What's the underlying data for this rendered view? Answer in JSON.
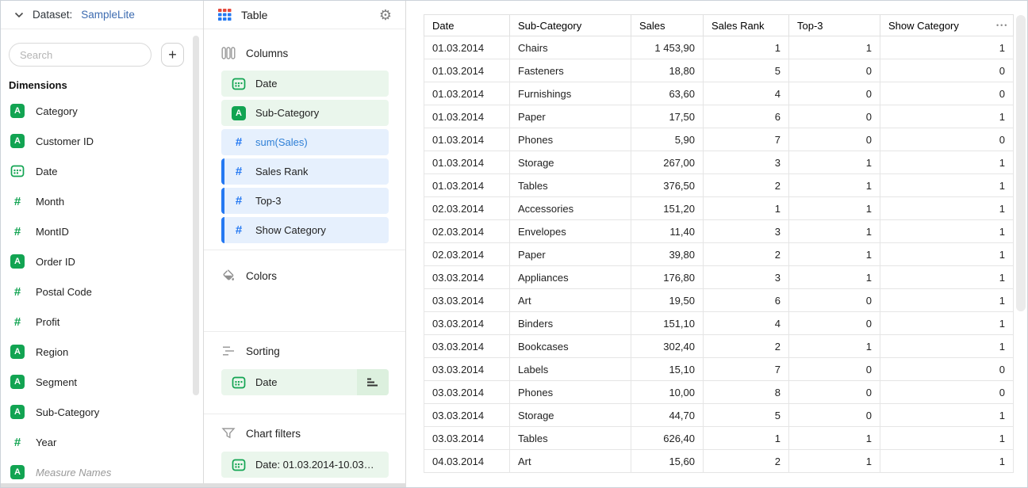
{
  "ui_colors": {
    "green": "#12A452",
    "green_bg": "#EAF6EC",
    "green_bg_dark": "#DCF0DE",
    "blue": "#2579F2",
    "blue_bg": "#E6F0FD",
    "blue_text": "#2E7FD6",
    "link_blue": "#3C6BB0"
  },
  "dataset_panel": {
    "label": "Dataset:",
    "dataset_name": "SampleLite",
    "search_placeholder": "Search",
    "add_button_label": "+",
    "dimensions_title": "Dimensions",
    "fields": [
      {
        "name": "Category",
        "type": "text"
      },
      {
        "name": "Customer ID",
        "type": "text"
      },
      {
        "name": "Date",
        "type": "date"
      },
      {
        "name": "Month",
        "type": "number"
      },
      {
        "name": "MontID",
        "type": "number"
      },
      {
        "name": "Order ID",
        "type": "text"
      },
      {
        "name": "Postal Code",
        "type": "number"
      },
      {
        "name": "Profit",
        "type": "number"
      },
      {
        "name": "Region",
        "type": "text"
      },
      {
        "name": "Segment",
        "type": "text"
      },
      {
        "name": "Sub-Category",
        "type": "text"
      },
      {
        "name": "Year",
        "type": "number"
      },
      {
        "name": "Measure Names",
        "type": "text",
        "muted": true
      }
    ]
  },
  "viz_panel": {
    "title": "Table",
    "settings_gear": "⚙",
    "columns_section": {
      "label": "Columns",
      "items": [
        {
          "label": "Date",
          "type": "date",
          "style": "green"
        },
        {
          "label": "Sub-Category",
          "type": "text",
          "style": "green"
        },
        {
          "label": "sum(Sales)",
          "type": "number",
          "style": "blue-formula"
        },
        {
          "label": "Sales Rank",
          "type": "number",
          "style": "blue-bar"
        },
        {
          "label": "Top-3",
          "type": "number",
          "style": "blue-bar"
        },
        {
          "label": "Show Category",
          "type": "number",
          "style": "blue-bar"
        }
      ]
    },
    "colors_section": {
      "label": "Colors"
    },
    "sorting_section": {
      "label": "Sorting",
      "items": [
        {
          "label": "Date",
          "type": "date",
          "direction": "asc"
        }
      ]
    },
    "filters_section": {
      "label": "Chart filters",
      "items": [
        {
          "label": "Date: 01.03.2014-10.03.20…",
          "type": "date"
        }
      ]
    }
  },
  "data_table": {
    "menu_dots": "•••",
    "columns": [
      "Date",
      "Sub-Category",
      "Sales",
      "Sales Rank",
      "Top-3",
      "Show Category"
    ],
    "rows": [
      [
        "01.03.2014",
        "Chairs",
        "1 453,90",
        "1",
        "1",
        "1"
      ],
      [
        "01.03.2014",
        "Fasteners",
        "18,80",
        "5",
        "0",
        "0"
      ],
      [
        "01.03.2014",
        "Furnishings",
        "63,60",
        "4",
        "0",
        "0"
      ],
      [
        "01.03.2014",
        "Paper",
        "17,50",
        "6",
        "0",
        "1"
      ],
      [
        "01.03.2014",
        "Phones",
        "5,90",
        "7",
        "0",
        "0"
      ],
      [
        "01.03.2014",
        "Storage",
        "267,00",
        "3",
        "1",
        "1"
      ],
      [
        "01.03.2014",
        "Tables",
        "376,50",
        "2",
        "1",
        "1"
      ],
      [
        "02.03.2014",
        "Accessories",
        "151,20",
        "1",
        "1",
        "1"
      ],
      [
        "02.03.2014",
        "Envelopes",
        "11,40",
        "3",
        "1",
        "1"
      ],
      [
        "02.03.2014",
        "Paper",
        "39,80",
        "2",
        "1",
        "1"
      ],
      [
        "03.03.2014",
        "Appliances",
        "176,80",
        "3",
        "1",
        "1"
      ],
      [
        "03.03.2014",
        "Art",
        "19,50",
        "6",
        "0",
        "1"
      ],
      [
        "03.03.2014",
        "Binders",
        "151,10",
        "4",
        "0",
        "1"
      ],
      [
        "03.03.2014",
        "Bookcases",
        "302,40",
        "2",
        "1",
        "1"
      ],
      [
        "03.03.2014",
        "Labels",
        "15,10",
        "7",
        "0",
        "0"
      ],
      [
        "03.03.2014",
        "Phones",
        "10,00",
        "8",
        "0",
        "0"
      ],
      [
        "03.03.2014",
        "Storage",
        "44,70",
        "5",
        "0",
        "1"
      ],
      [
        "03.03.2014",
        "Tables",
        "626,40",
        "1",
        "1",
        "1"
      ],
      [
        "04.03.2014",
        "Art",
        "15,60",
        "2",
        "1",
        "1"
      ]
    ]
  }
}
